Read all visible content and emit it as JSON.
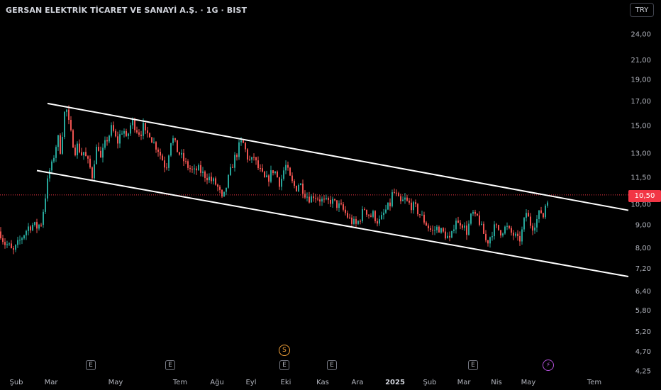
{
  "header": {
    "title": "GERSAN ELEKTRİK TİCARET VE SANAYİ A.Ş. · 1G · BIST",
    "currency": "TRY"
  },
  "price_label": "10,50",
  "events": {
    "earnings_label": "E",
    "split_label": "S",
    "bolt_glyph": "⚡"
  },
  "colors": {
    "background": "#000000",
    "up": "#26a69a",
    "down": "#ef5350",
    "channel": "#ffffff",
    "price_line": "#f23645"
  },
  "chart_data": {
    "type": "candlestick",
    "symbol": "GERSAN",
    "interval": "1G",
    "exchange": "BIST",
    "y_scale": "log",
    "y_ticks": [
      "24,00",
      "21,00",
      "19,00",
      "17,00",
      "15,00",
      "13,00",
      "11,50",
      "10,00",
      "9,00",
      "8,00",
      "7,20",
      "6,40",
      "5,80",
      "5,20",
      "4,70",
      "4,25"
    ],
    "y_tick_values": [
      24,
      21,
      19,
      17,
      15,
      13,
      11.5,
      10,
      9,
      8,
      7.2,
      6.4,
      5.8,
      5.2,
      4.7,
      4.25
    ],
    "x_ticks": [
      "Şub",
      "Mar",
      "May",
      "Tem",
      "Ağu",
      "Eyl",
      "Eki",
      "Kas",
      "Ara",
      "2025",
      "Şub",
      "Mar",
      "Nis",
      "May",
      "Tem"
    ],
    "bold_x_tick": "2025",
    "last_price": 10.5,
    "channel_upper": {
      "start": 16.8,
      "end": 9.7
    },
    "channel_lower": {
      "start": 11.9,
      "end": 6.9
    },
    "price_path": [
      [
        0,
        8.7
      ],
      [
        6,
        8.2
      ],
      [
        12,
        8.1
      ],
      [
        18,
        7.8
      ],
      [
        22,
        8.0
      ],
      [
        28,
        8.3
      ],
      [
        34,
        8.6
      ],
      [
        40,
        8.9
      ],
      [
        46,
        9.0
      ],
      [
        52,
        8.9
      ],
      [
        58,
        9.1
      ],
      [
        62,
        9.9
      ],
      [
        66,
        11.0
      ],
      [
        70,
        11.9
      ],
      [
        74,
        12.3
      ],
      [
        78,
        13.4
      ],
      [
        82,
        14.0
      ],
      [
        86,
        13.0
      ],
      [
        90,
        15.9
      ],
      [
        94,
        16.2
      ],
      [
        98,
        14.8
      ],
      [
        102,
        13.9
      ],
      [
        106,
        13.2
      ],
      [
        110,
        13.6
      ],
      [
        114,
        12.9
      ],
      [
        118,
        13.1
      ],
      [
        122,
        12.6
      ],
      [
        126,
        12.2
      ],
      [
        130,
        11.6
      ],
      [
        134,
        12.9
      ],
      [
        138,
        13.7
      ],
      [
        142,
        12.6
      ],
      [
        146,
        13.3
      ],
      [
        150,
        13.9
      ],
      [
        154,
        14.3
      ],
      [
        158,
        14.9
      ],
      [
        162,
        14.1
      ],
      [
        166,
        13.8
      ],
      [
        170,
        14.4
      ],
      [
        174,
        14.8
      ],
      [
        178,
        13.9
      ],
      [
        182,
        14.6
      ],
      [
        186,
        15.4
      ],
      [
        190,
        15.0
      ],
      [
        194,
        14.6
      ],
      [
        198,
        14.4
      ],
      [
        202,
        14.9
      ],
      [
        206,
        14.1
      ],
      [
        210,
        14.6
      ],
      [
        214,
        14.0
      ],
      [
        218,
        13.6
      ],
      [
        222,
        13.4
      ],
      [
        226,
        12.9
      ],
      [
        230,
        12.5
      ],
      [
        234,
        12.0
      ],
      [
        238,
        13.1
      ],
      [
        242,
        14.2
      ],
      [
        246,
        13.7
      ],
      [
        250,
        13.2
      ],
      [
        254,
        12.9
      ],
      [
        258,
        12.6
      ],
      [
        262,
        12.3
      ],
      [
        266,
        12.1
      ],
      [
        270,
        11.9
      ],
      [
        274,
        11.8
      ],
      [
        278,
        12.0
      ],
      [
        282,
        11.9
      ],
      [
        286,
        11.7
      ],
      [
        290,
        11.6
      ],
      [
        294,
        11.5
      ],
      [
        298,
        11.3
      ],
      [
        302,
        11.2
      ],
      [
        306,
        11.0
      ],
      [
        310,
        10.6
      ],
      [
        314,
        10.1
      ],
      [
        318,
        10.8
      ],
      [
        322,
        11.4
      ],
      [
        326,
        12.0
      ],
      [
        330,
        12.6
      ],
      [
        334,
        13.0
      ],
      [
        338,
        13.6
      ],
      [
        342,
        13.8
      ],
      [
        346,
        13.2
      ],
      [
        350,
        12.6
      ],
      [
        354,
        12.4
      ],
      [
        358,
        12.8
      ],
      [
        362,
        12.2
      ],
      [
        366,
        11.9
      ],
      [
        370,
        11.6
      ],
      [
        374,
        11.3
      ],
      [
        378,
        11.4
      ],
      [
        382,
        11.7
      ],
      [
        386,
        12.0
      ],
      [
        390,
        11.6
      ],
      [
        394,
        11.2
      ],
      [
        398,
        11.5
      ],
      [
        402,
        12.3
      ],
      [
        406,
        11.8
      ],
      [
        410,
        11.3
      ],
      [
        414,
        11.0
      ],
      [
        418,
        10.9
      ],
      [
        422,
        11.2
      ],
      [
        426,
        10.9
      ],
      [
        430,
        10.6
      ],
      [
        434,
        10.4
      ],
      [
        438,
        10.3
      ],
      [
        442,
        10.5
      ],
      [
        446,
        10.4
      ],
      [
        450,
        10.3
      ],
      [
        454,
        10.2
      ],
      [
        458,
        10.1
      ],
      [
        462,
        10.1
      ],
      [
        466,
        10.2
      ],
      [
        470,
        10.1
      ],
      [
        474,
        10.0
      ],
      [
        478,
        9.9
      ],
      [
        482,
        9.8
      ],
      [
        486,
        9.6
      ],
      [
        490,
        9.4
      ],
      [
        494,
        9.2
      ],
      [
        498,
        9.1
      ],
      [
        502,
        9.0
      ],
      [
        506,
        9.2
      ],
      [
        510,
        9.5
      ],
      [
        514,
        9.8
      ],
      [
        518,
        9.6
      ],
      [
        522,
        9.4
      ],
      [
        526,
        9.5
      ],
      [
        530,
        9.3
      ],
      [
        534,
        9.1
      ],
      [
        538,
        9.3
      ],
      [
        542,
        9.6
      ],
      [
        546,
        9.8
      ],
      [
        550,
        10.0
      ],
      [
        554,
        10.7
      ],
      [
        558,
        10.5
      ],
      [
        562,
        10.2
      ],
      [
        566,
        10.0
      ],
      [
        570,
        10.3
      ],
      [
        574,
        10.1
      ],
      [
        578,
        10.0
      ],
      [
        582,
        9.9
      ],
      [
        586,
        9.8
      ],
      [
        590,
        9.6
      ],
      [
        594,
        9.4
      ],
      [
        598,
        9.2
      ],
      [
        602,
        9.0
      ],
      [
        606,
        8.8
      ],
      [
        610,
        8.7
      ],
      [
        614,
        8.8
      ],
      [
        618,
        8.9
      ],
      [
        622,
        8.7
      ],
      [
        626,
        8.6
      ],
      [
        630,
        8.5
      ],
      [
        634,
        8.3
      ],
      [
        638,
        8.6
      ],
      [
        642,
        9.4
      ],
      [
        646,
        9.0
      ],
      [
        650,
        9.2
      ],
      [
        654,
        8.9
      ],
      [
        658,
        8.7
      ],
      [
        662,
        9.1
      ],
      [
        666,
        9.6
      ],
      [
        670,
        9.3
      ],
      [
        674,
        9.4
      ],
      [
        678,
        8.9
      ],
      [
        682,
        8.6
      ],
      [
        686,
        8.2
      ],
      [
        690,
        8.4
      ],
      [
        694,
        8.7
      ],
      [
        698,
        8.9
      ],
      [
        702,
        8.8
      ],
      [
        706,
        8.7
      ],
      [
        710,
        8.8
      ],
      [
        714,
        8.9
      ],
      [
        718,
        8.7
      ],
      [
        722,
        8.6
      ],
      [
        726,
        8.5
      ],
      [
        730,
        8.3
      ],
      [
        734,
        8.4
      ],
      [
        738,
        9.0
      ],
      [
        742,
        9.6
      ],
      [
        746,
        9.2
      ],
      [
        750,
        8.9
      ],
      [
        754,
        9.1
      ],
      [
        758,
        9.3
      ],
      [
        762,
        9.7
      ],
      [
        766,
        9.4
      ],
      [
        770,
        10.2
      ],
      [
        774,
        10.5
      ]
    ]
  }
}
